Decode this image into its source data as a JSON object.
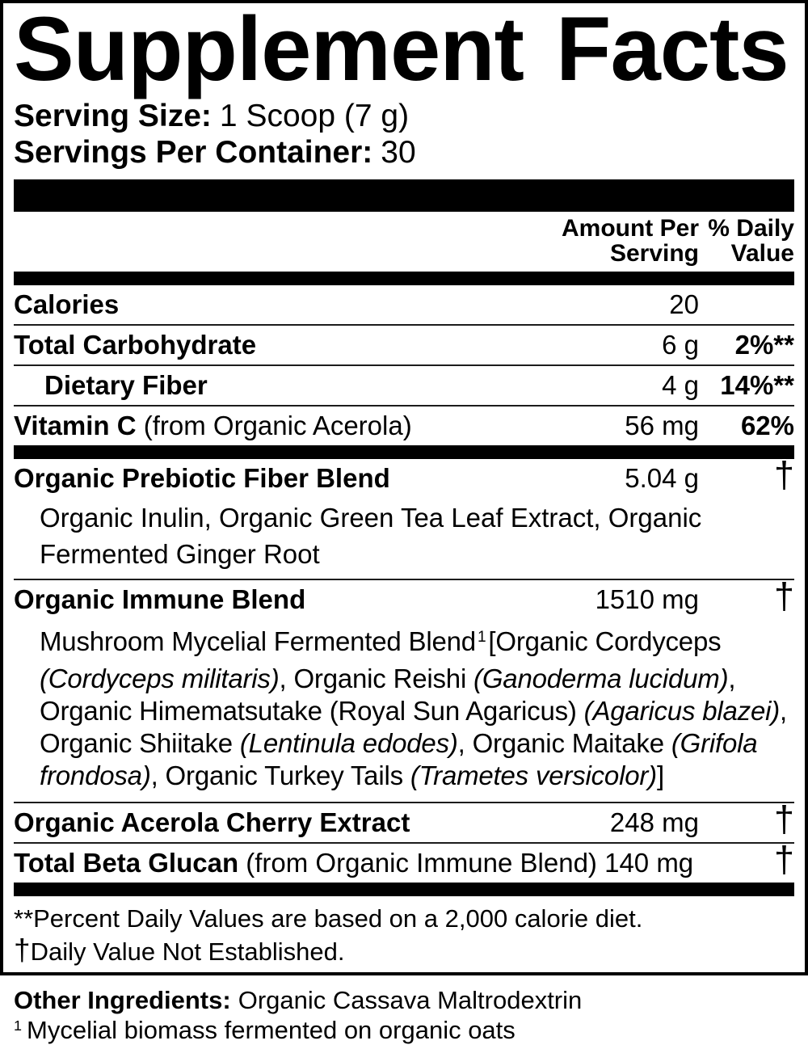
{
  "colors": {
    "text": "#000000",
    "background": "#ffffff",
    "rule": "#000000"
  },
  "label": {
    "title": "Supplement Facts",
    "serving_size": {
      "label": "Serving Size:",
      "value": "1 Scoop (7 g)"
    },
    "servings_per_container": {
      "label": "Servings Per Container:",
      "value": "30"
    },
    "columns": {
      "amount_line1": "Amount Per",
      "amount_line2": "Serving",
      "dv_line1": "% Daily",
      "dv_line2": "Value"
    },
    "rows": [
      {
        "name": "Calories",
        "suffix": "",
        "amount": "20",
        "dv": "",
        "dv_style": "bold",
        "indent": false,
        "sep_after": "thin"
      },
      {
        "name": "Total Carbohydrate",
        "suffix": "",
        "amount": "6 g",
        "dv": "2%**",
        "dv_style": "bold",
        "indent": false,
        "sep_after": "thin"
      },
      {
        "name": "Dietary Fiber",
        "suffix": "",
        "amount": "4 g",
        "dv": "14%**",
        "dv_style": "bold",
        "indent": true,
        "sep_after": "thin"
      },
      {
        "name": "Vitamin C",
        "suffix": " (from Organic Acerola)",
        "amount": "56 mg",
        "dv": "62%",
        "dv_style": "bold",
        "indent": false,
        "sep_after": "thick"
      },
      {
        "name": "Organic Prebiotic Fiber Blend",
        "suffix": "",
        "amount": "5.04 g",
        "dv": "†",
        "dv_style": "dagger",
        "indent": false,
        "sub_lines": [
          "Organic Inulin, Organic Green Tea Leaf Extract, Organic",
          "Fermented Ginger Root"
        ],
        "sep_after": "thin"
      },
      {
        "name": "Organic Immune Blend",
        "suffix": "",
        "amount": "1510 mg",
        "dv": "†",
        "dv_style": "dagger",
        "indent": false,
        "desc_lines": [
          [
            {
              "t": "Mushroom Mycelial Fermented Blend",
              "s": "r"
            },
            {
              "t": "1",
              "s": "sup"
            },
            {
              "t": "[Organic Cordyceps",
              "s": "r"
            }
          ],
          [
            {
              "t": "(Cordyceps militaris)",
              "s": "i"
            },
            {
              "t": ", Organic Reishi ",
              "s": "r"
            },
            {
              "t": "(Ganoderma lucidum)",
              "s": "i"
            },
            {
              "t": ",",
              "s": "r"
            }
          ],
          [
            {
              "t": "Organic Himematsutake (Royal Sun Agaricus) ",
              "s": "r"
            },
            {
              "t": "(Agaricus blazei)",
              "s": "i"
            },
            {
              "t": ",",
              "s": "r"
            }
          ],
          [
            {
              "t": "Organic Shiitake ",
              "s": "r"
            },
            {
              "t": "(Lentinula edodes)",
              "s": "i"
            },
            {
              "t": ", Organic Maitake ",
              "s": "r"
            },
            {
              "t": "(Grifola",
              "s": "i"
            }
          ],
          [
            {
              "t": "frondosa)",
              "s": "i"
            },
            {
              "t": ", Organic Turkey Tails ",
              "s": "r"
            },
            {
              "t": "(Trametes versicolor)",
              "s": "i"
            },
            {
              "t": "]",
              "s": "r"
            }
          ]
        ],
        "sep_after": "thin"
      },
      {
        "name": "Organic Acerola Cherry Extract",
        "suffix": "",
        "amount": "248 mg",
        "dv": "†",
        "dv_style": "dagger",
        "indent": false,
        "sep_after": "thin"
      },
      {
        "name": "Total Beta Glucan",
        "suffix": " (from Organic Immune Blend) 140 mg",
        "amount": "",
        "dv": "†",
        "dv_style": "dagger",
        "indent": false,
        "sep_after": "thick"
      }
    ],
    "footnotes": {
      "line1": "**Percent Daily Values are based on a 2,000 calorie diet.",
      "line2_dagger": "†",
      "line2_text": "Daily Value Not Established."
    },
    "other_ingredients": {
      "label": "Other Ingredients:",
      "value": "Organic Cassava Maltrodextrin"
    },
    "biomass_note": {
      "sup": "1",
      "text": "Mycelial biomass fermented on organic oats"
    }
  }
}
